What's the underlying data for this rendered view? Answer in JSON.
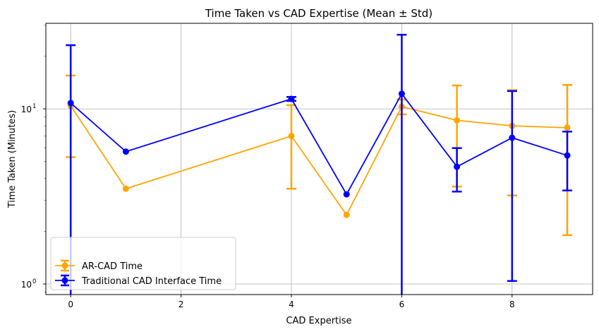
{
  "chart_data": {
    "type": "line",
    "title": "Time Taken vs CAD Expertise (Mean ± Std)",
    "xlabel": "CAD Expertise",
    "ylabel": "Time Taken (Minutes)",
    "xlim": [
      -0.45,
      9.46
    ],
    "ylim": [
      0.87,
      30.8
    ],
    "yscale": "log",
    "grid": true,
    "legend": "lower-left",
    "x_ticks": [
      0,
      2,
      4,
      6,
      8
    ],
    "x_tick_labels": [
      "0",
      "2",
      "4",
      "6",
      "8"
    ],
    "y_ticks": [
      1,
      10
    ],
    "y_tick_labels": [
      {
        "base": "10",
        "exp": "0"
      },
      {
        "base": "10",
        "exp": "1"
      }
    ],
    "series": [
      {
        "name": "AR-CAD Time",
        "color": "#FFA500",
        "x": [
          0,
          1,
          4,
          5,
          6,
          7,
          8,
          9
        ],
        "y": [
          10.4,
          3.5,
          7.0,
          2.48,
          10.3,
          8.6,
          8.0,
          7.8
        ],
        "std": [
          5.1,
          0,
          3.5,
          0,
          1.0,
          5.0,
          4.8,
          5.9
        ]
      },
      {
        "name": "Traditional CAD Interface Time",
        "color": "#0000FF",
        "x": [
          0,
          1,
          4,
          5,
          6,
          7,
          8,
          9
        ],
        "y": [
          10.8,
          5.7,
          11.4,
          3.25,
          12.2,
          4.67,
          6.84,
          5.42
        ],
        "std": [
          12.3,
          0,
          0.3,
          0,
          14.3,
          1.3,
          5.8,
          2.0
        ]
      }
    ]
  }
}
